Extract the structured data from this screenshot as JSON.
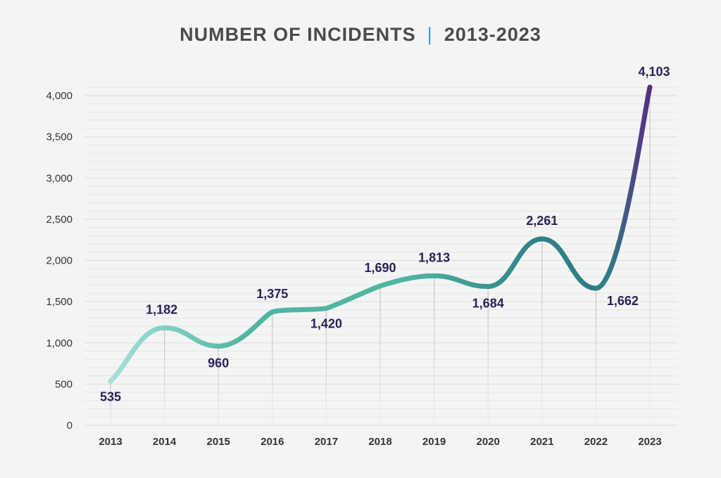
{
  "title": {
    "main": "NUMBER OF INCIDENTS",
    "separator": "|",
    "range": "2013-2023"
  },
  "colors": {
    "background": "#f3f4f4",
    "line_start": "#a7e0d8",
    "line_mid": "#4fb5a2",
    "line_teal": "#2e7f86",
    "line_end": "#5a2d82",
    "label": "#2b2158",
    "separator": "#3a9fd8"
  },
  "chart_data": {
    "type": "line",
    "title": "NUMBER OF INCIDENTS | 2013-2023",
    "xlabel": "",
    "ylabel": "",
    "categories": [
      "2013",
      "2014",
      "2015",
      "2016",
      "2017",
      "2018",
      "2019",
      "2020",
      "2021",
      "2022",
      "2023"
    ],
    "values": [
      535,
      1182,
      960,
      1375,
      1420,
      1690,
      1813,
      1684,
      2261,
      1662,
      4103
    ],
    "data_labels": [
      "535",
      "1,182",
      "960",
      "1,375",
      "1,420",
      "1,690",
      "1,813",
      "1,684",
      "2,261",
      "1,662",
      "4,103"
    ],
    "yticks": [
      0,
      500,
      1000,
      1500,
      2000,
      2500,
      3000,
      3500,
      4000
    ],
    "ytick_labels": [
      "0",
      "500",
      "1,000",
      "1,500",
      "2,000",
      "2,500",
      "3,000",
      "3,500",
      "4,000"
    ],
    "ylim": [
      0,
      4200
    ],
    "grid": true,
    "smooth": true
  }
}
